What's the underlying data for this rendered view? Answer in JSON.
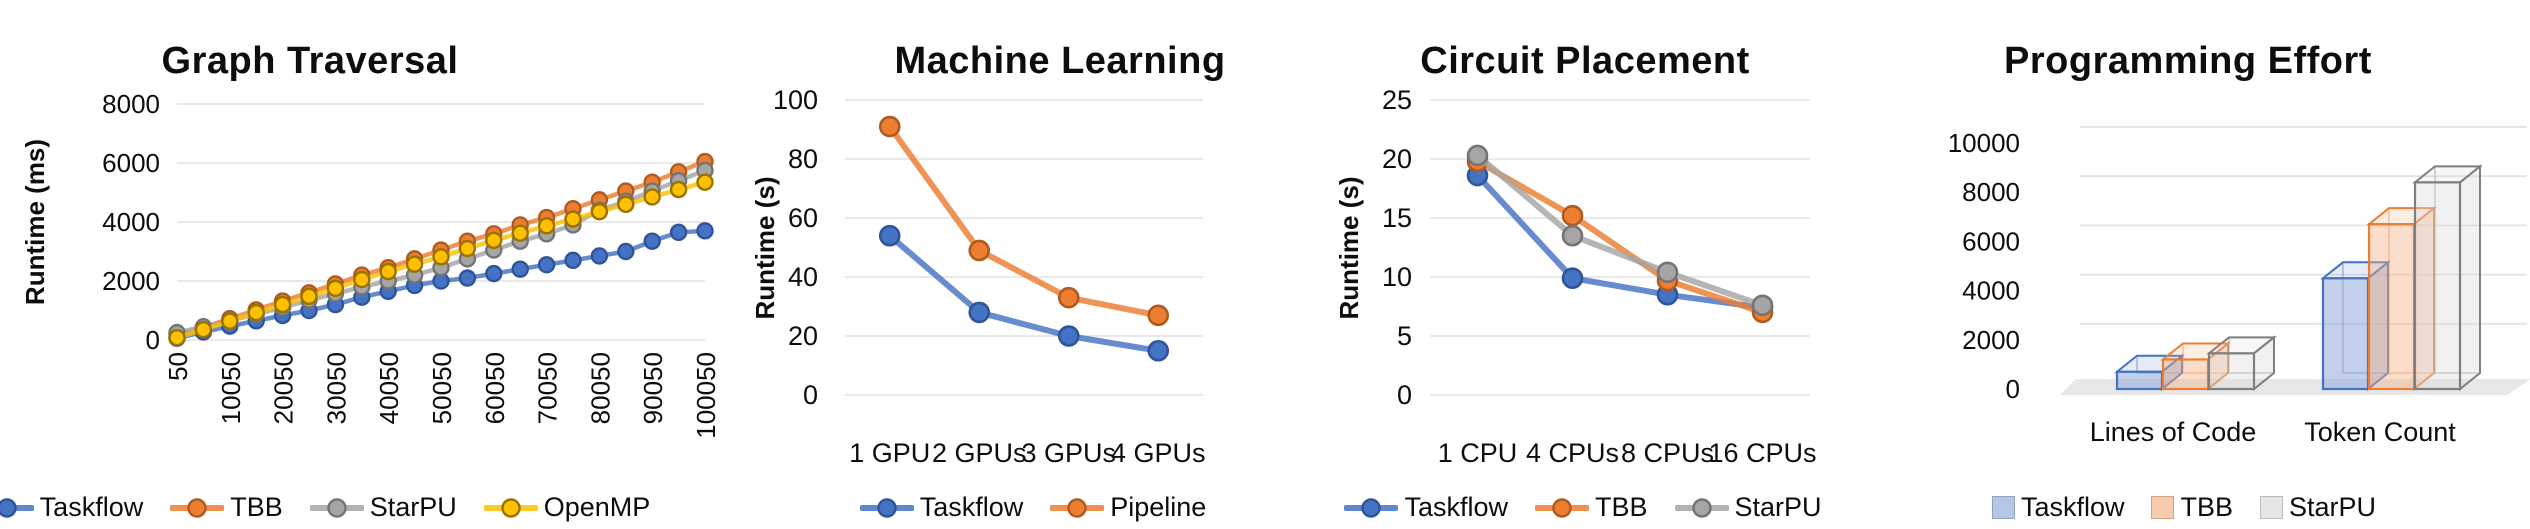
{
  "figure": {
    "background": "#FFFFFF",
    "text_color": "#0D0D0D",
    "gridline_color": "#E2E2E2"
  },
  "chart_data": [
    {
      "type": "line",
      "title": "Graph Traversal",
      "xlabel": "",
      "ylabel": "Runtime (ms)",
      "ylim": [
        0,
        8000
      ],
      "yticks": [
        0,
        2000,
        4000,
        6000,
        8000
      ],
      "grid": true,
      "legend_position": "bottom",
      "x": [
        50,
        5050,
        10050,
        15050,
        20050,
        25050,
        30050,
        35050,
        40050,
        45050,
        50050,
        55050,
        60050,
        65050,
        70050,
        75050,
        80050,
        85050,
        90050,
        95050,
        100050
      ],
      "x_tick_labels": [
        "50",
        "10050",
        "20050",
        "30050",
        "40050",
        "50050",
        "60050",
        "70050",
        "80050",
        "90050",
        "100050"
      ],
      "series": [
        {
          "name": "Taskflow",
          "color": "#4472C4",
          "ring": "#2F5597",
          "values": [
            60,
            270,
            470,
            650,
            830,
            1000,
            1200,
            1450,
            1650,
            1850,
            2000,
            2100,
            2250,
            2400,
            2550,
            2700,
            2850,
            3000,
            3350,
            3650,
            3700
          ]
        },
        {
          "name": "TBB",
          "color": "#ED7D31",
          "ring": "#AE5A21",
          "values": [
            150,
            430,
            720,
            1020,
            1320,
            1600,
            1900,
            2200,
            2450,
            2750,
            3050,
            3350,
            3600,
            3900,
            4150,
            4450,
            4750,
            5050,
            5350,
            5700,
            6050
          ]
        },
        {
          "name": "StarPU",
          "color": "#A5A5A5",
          "ring": "#747474",
          "values": [
            250,
            450,
            650,
            880,
            1100,
            1350,
            1570,
            1800,
            2000,
            2200,
            2450,
            2750,
            3050,
            3350,
            3600,
            3900,
            4400,
            4700,
            5050,
            5400,
            5750
          ]
        },
        {
          "name": "OpenMP",
          "color": "#FFC000",
          "ring": "#997300",
          "values": [
            80,
            350,
            640,
            930,
            1200,
            1480,
            1750,
            2050,
            2320,
            2570,
            2820,
            3100,
            3380,
            3620,
            3870,
            4100,
            4350,
            4600,
            4850,
            5100,
            5350
          ]
        }
      ]
    },
    {
      "type": "line",
      "title": "Machine Learning",
      "xlabel": "",
      "ylabel": "Runtime (s)",
      "ylim": [
        0,
        100
      ],
      "yticks": [
        0,
        20,
        40,
        60,
        80,
        100
      ],
      "grid": true,
      "legend_position": "bottom",
      "categories": [
        "1 GPU",
        "2 GPUs",
        "3 GPUs",
        "4 GPUs"
      ],
      "series": [
        {
          "name": "Taskflow",
          "color": "#4472C4",
          "ring": "#2F5597",
          "values": [
            54,
            28,
            20,
            15
          ]
        },
        {
          "name": "Pipeline",
          "color": "#ED7D31",
          "ring": "#AE5A21",
          "values": [
            91,
            49,
            33,
            27
          ]
        }
      ]
    },
    {
      "type": "line",
      "title": "Circuit Placement",
      "xlabel": "",
      "ylabel": "Runtime (s)",
      "ylim": [
        0,
        25
      ],
      "yticks": [
        0,
        5,
        10,
        15,
        20,
        25
      ],
      "grid": true,
      "legend_position": "bottom",
      "categories": [
        "1 CPU",
        "4 CPUs",
        "8 CPUs",
        "16 CPUs"
      ],
      "series": [
        {
          "name": "Taskflow",
          "color": "#4472C4",
          "ring": "#2F5597",
          "values": [
            18.6,
            9.9,
            8.5,
            7.4
          ]
        },
        {
          "name": "TBB",
          "color": "#ED7D31",
          "ring": "#AE5A21",
          "values": [
            19.8,
            15.2,
            9.7,
            7.0
          ]
        },
        {
          "name": "StarPU",
          "color": "#A5A5A5",
          "ring": "#747474",
          "values": [
            20.3,
            13.5,
            10.4,
            7.6
          ]
        }
      ]
    },
    {
      "type": "bar3d",
      "title": "Programming Effort",
      "xlabel": "",
      "ylabel": "",
      "ylim": [
        0,
        10000
      ],
      "yticks": [
        0,
        2000,
        4000,
        6000,
        8000,
        10000
      ],
      "grid": true,
      "legend_position": "bottom",
      "categories": [
        "Lines of Code",
        "Token Count"
      ],
      "series": [
        {
          "name": "Taskflow",
          "edge": "#4472C4",
          "fill": "#8FAADC",
          "fill_opacity": 0.55,
          "legend_fill": "#B4C7E7",
          "values": [
            700,
            4500
          ]
        },
        {
          "name": "TBB",
          "edge": "#ED7D31",
          "fill": "#F4B183",
          "fill_opacity": 0.42,
          "legend_fill": "#F8CBAD",
          "values": [
            1200,
            6700
          ]
        },
        {
          "name": "StarPU",
          "edge": "#7F7F7F",
          "fill": "#D9D9D9",
          "fill_opacity": 0.38,
          "legend_fill": "#E7E6E6",
          "values": [
            1450,
            8400
          ]
        }
      ]
    }
  ]
}
